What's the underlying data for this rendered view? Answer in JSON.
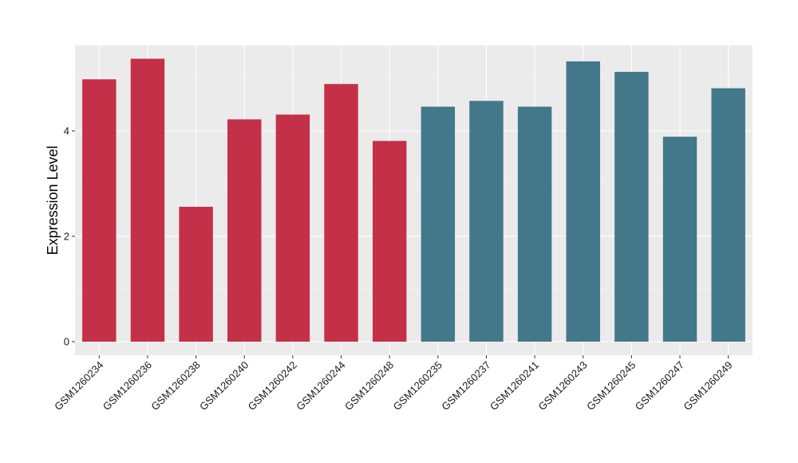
{
  "chart_data": {
    "type": "bar",
    "title": "",
    "xlabel": "",
    "ylabel": "Expression Level",
    "ylim": [
      0,
      5.65
    ],
    "yticks": [
      0,
      2,
      4
    ],
    "grid": true,
    "panel_background": "#ebebeb",
    "categories": [
      "GSM1260234",
      "GSM1260236",
      "GSM1260238",
      "GSM1260240",
      "GSM1260242",
      "GSM1260244",
      "GSM1260248",
      "GSM1260235",
      "GSM1260237",
      "GSM1260241",
      "GSM1260243",
      "GSM1260245",
      "GSM1260247",
      "GSM1260249"
    ],
    "values": [
      4.98,
      5.37,
      2.56,
      4.22,
      4.31,
      4.89,
      3.81,
      4.46,
      4.57,
      4.46,
      5.32,
      5.12,
      3.89,
      4.81
    ],
    "groups": [
      "a",
      "a",
      "a",
      "a",
      "a",
      "a",
      "a",
      "b",
      "b",
      "b",
      "b",
      "b",
      "b",
      "b"
    ],
    "group_colors": {
      "a": "#c43048",
      "b": "#42788a"
    },
    "legend": "none"
  }
}
